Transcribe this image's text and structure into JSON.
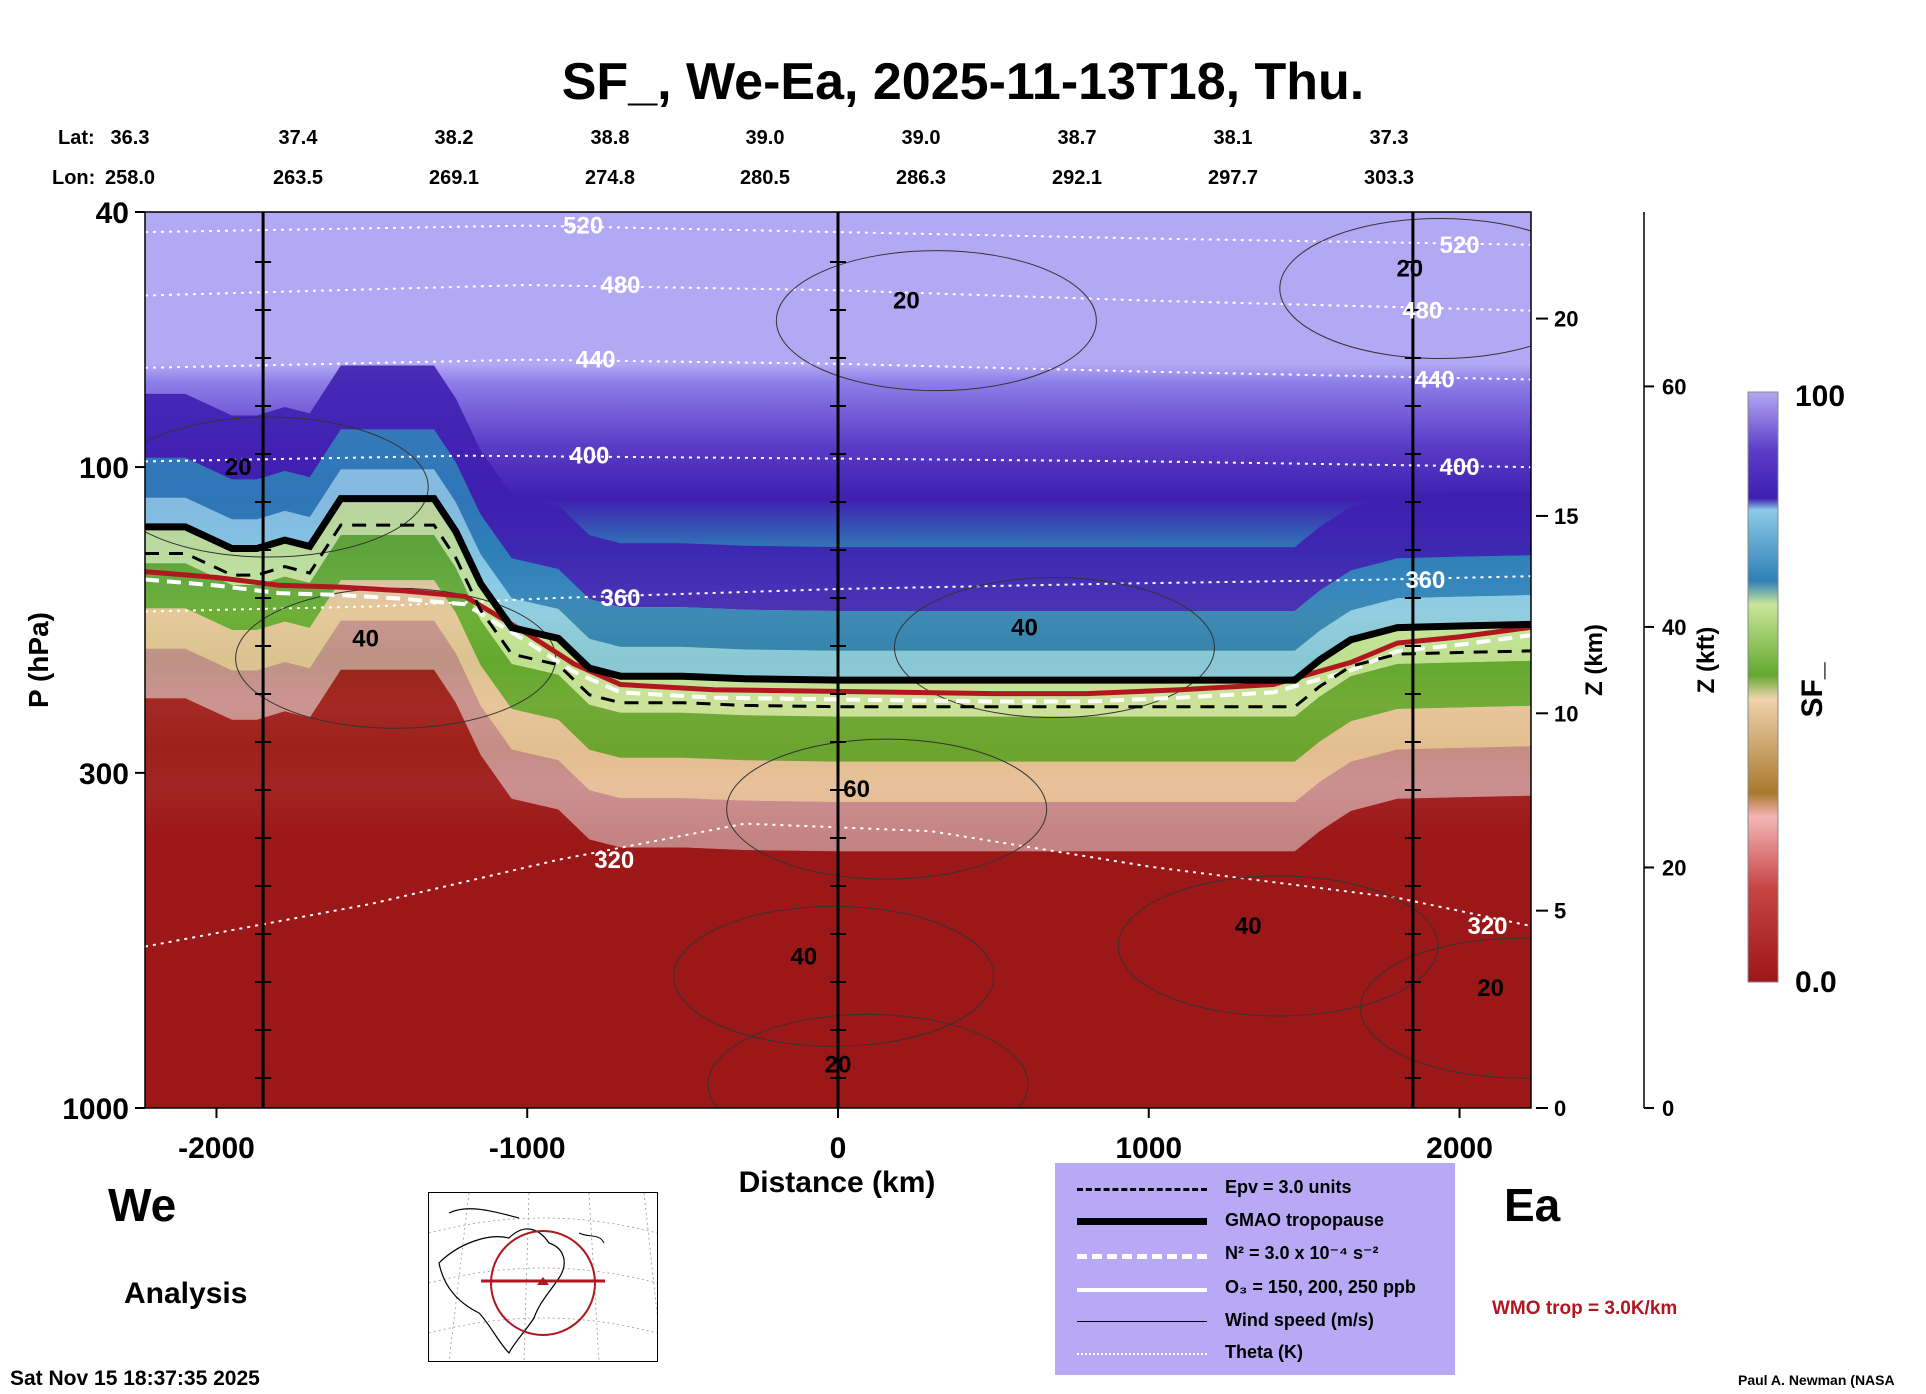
{
  "title": "SF_, We-Ea, 2025-11-13T18, Thu.",
  "header_rows": {
    "lat_label": "Lat:",
    "lon_label": "Lon:",
    "lat": [
      "36.3",
      "37.4",
      "38.2",
      "38.8",
      "39.0",
      "39.0",
      "38.7",
      "38.1",
      "37.3"
    ],
    "lon": [
      "258.0",
      "263.5",
      "269.1",
      "274.8",
      "280.5",
      "286.3",
      "292.1",
      "297.7",
      "303.3"
    ]
  },
  "direction": {
    "west": "We",
    "east": "Ea"
  },
  "mode_label": "Analysis",
  "timestamp": "Sat Nov 15 18:37:35 2025",
  "credit": "Paul A. Newman (NASA",
  "wmo_label": "WMO trop = 3.0K/km",
  "legend": {
    "epv": "Epv = 3.0 units",
    "tropopause": "GMAO tropopause",
    "n2": "N² = 3.0 x 10⁻⁴ s⁻²",
    "o3": "O₃ = 150, 200, 250 ppb",
    "wind": "Wind speed (m/s)",
    "theta": "Theta (K)"
  },
  "colors": {
    "stratosphere_top": "#b3a8f3",
    "purple_dark": "#3f1fb0",
    "blue_mid": "#2f7fb8",
    "blue_light": "#8ccbe6",
    "green_light": "#c9e69a",
    "green_dark": "#64a82e",
    "tan": "#e8c59a",
    "brown": "#a8792d",
    "pink": "#e49a9a",
    "red_dark": "#9c1717",
    "legend_bg": "#b7a9f6",
    "wmo": "#b0171f"
  },
  "chart_data": {
    "type": "heatmap",
    "title": "SF_, We-Ea, 2025-11-13T18, Thu.",
    "xlabel": "Distance (km)",
    "ylabel": "P (hPa)",
    "ylabel_right_km": "Z (km)",
    "ylabel_right_kft": "Z (kft)",
    "colorbar_label": "SF_",
    "xlim": [
      -2230,
      2230
    ],
    "ylim": [
      1000,
      40
    ],
    "y_scale": "log",
    "x_ticks": [
      -2000,
      -1000,
      0,
      1000,
      2000
    ],
    "x_tick_labels": [
      "-2000",
      "-1000",
      "0",
      "1000",
      "2000"
    ],
    "y_ticks": [
      40,
      100,
      300,
      1000
    ],
    "y_tick_labels": [
      "40",
      "100",
      "300",
      "1000"
    ],
    "z_km_ticks": [
      0,
      5,
      10,
      15,
      20
    ],
    "z_km_labels": [
      "0",
      "5",
      "10",
      "15",
      "20"
    ],
    "z_km_max": 22.7,
    "z_kft_ticks": [
      0,
      20,
      40,
      60
    ],
    "z_kft_labels": [
      "0",
      "20",
      "40",
      "60"
    ],
    "z_kft_max": 74.5,
    "colorbar_range": [
      0.0,
      100
    ],
    "colorbar_labels": [
      "100",
      "0.0"
    ],
    "vertical_markers_km": [
      -1850,
      0,
      1850
    ],
    "tropopause_km": [
      [
        -2230,
        124
      ],
      [
        -2100,
        124
      ],
      [
        -1950,
        134
      ],
      [
        -1870,
        134
      ],
      [
        -1780,
        130
      ],
      [
        -1700,
        133
      ],
      [
        -1600,
        112
      ],
      [
        -1450,
        112
      ],
      [
        -1300,
        112
      ],
      [
        -1230,
        126
      ],
      [
        -1150,
        152
      ],
      [
        -1050,
        178
      ],
      [
        -900,
        185
      ],
      [
        -800,
        206
      ],
      [
        -700,
        212
      ],
      [
        -500,
        212
      ],
      [
        -300,
        214
      ],
      [
        0,
        215
      ],
      [
        300,
        215
      ],
      [
        600,
        215
      ],
      [
        900,
        215
      ],
      [
        1200,
        215
      ],
      [
        1470,
        215
      ],
      [
        1550,
        200
      ],
      [
        1650,
        186
      ],
      [
        1800,
        178
      ],
      [
        2000,
        177
      ],
      [
        2230,
        176
      ]
    ],
    "wmo_tropopause_km": [
      [
        -2230,
        140
      ],
      [
        -2000,
        143
      ],
      [
        -1800,
        147
      ],
      [
        -1600,
        148
      ],
      [
        -1400,
        150
      ],
      [
        -1200,
        153
      ],
      [
        -1000,
        175
      ],
      [
        -850,
        195
      ],
      [
        -700,
        210
      ],
      [
        -400,
        214
      ],
      [
        -100,
        215
      ],
      [
        200,
        216
      ],
      [
        500,
        217
      ],
      [
        800,
        217
      ],
      [
        1100,
        214
      ],
      [
        1400,
        210
      ],
      [
        1650,
        194
      ],
      [
        1800,
        181
      ],
      [
        2000,
        177
      ],
      [
        2230,
        171
      ]
    ],
    "theta_contours": [
      {
        "label": "520",
        "label_x_km": [
          -820,
          2000
        ],
        "points": [
          [
            -2230,
            43
          ],
          [
            -1000,
            42
          ],
          [
            0,
            43
          ],
          [
            1000,
            44
          ],
          [
            2230,
            45
          ]
        ]
      },
      {
        "label": "480",
        "label_x_km": [
          -700,
          1880
        ],
        "points": [
          [
            -2230,
            54
          ],
          [
            -1000,
            52
          ],
          [
            0,
            53
          ],
          [
            1000,
            55
          ],
          [
            2230,
            57
          ]
        ]
      },
      {
        "label": "440",
        "label_x_km": [
          -780,
          1920
        ],
        "points": [
          [
            -2230,
            70
          ],
          [
            -1000,
            68
          ],
          [
            0,
            69
          ],
          [
            1000,
            71
          ],
          [
            2230,
            73
          ]
        ]
      },
      {
        "label": "400",
        "label_x_km": [
          -800,
          2000
        ],
        "points": [
          [
            -2230,
            98
          ],
          [
            -1200,
            96
          ],
          [
            0,
            97
          ],
          [
            1000,
            98
          ],
          [
            2230,
            100
          ]
        ]
      },
      {
        "label": "360",
        "label_x_km": [
          -700,
          1890
        ],
        "points": [
          [
            -2230,
            168
          ],
          [
            -1500,
            165
          ],
          [
            -900,
            160
          ],
          [
            0,
            155
          ],
          [
            900,
            152
          ],
          [
            1700,
            150
          ],
          [
            2230,
            148
          ]
        ]
      },
      {
        "label": "320",
        "label_x_km": [
          -720,
          2090
        ],
        "points": [
          [
            -2230,
            560
          ],
          [
            -1500,
            480
          ],
          [
            -900,
            410
          ],
          [
            -300,
            360
          ],
          [
            300,
            370
          ],
          [
            1000,
            420
          ],
          [
            1800,
            470
          ],
          [
            2230,
            520
          ]
        ]
      }
    ],
    "wind_contour_labels": [
      {
        "label": "20",
        "x_km": 220,
        "p_hpa": 55
      },
      {
        "label": "20",
        "x_km": -1930,
        "p_hpa": 100
      },
      {
        "label": "40",
        "x_km": -1520,
        "p_hpa": 185
      },
      {
        "label": "40",
        "x_km": 600,
        "p_hpa": 178
      },
      {
        "label": "60",
        "x_km": 60,
        "p_hpa": 318
      },
      {
        "label": "40",
        "x_km": -110,
        "p_hpa": 580
      },
      {
        "label": "40",
        "x_km": 1320,
        "p_hpa": 520
      },
      {
        "label": "20",
        "x_km": 2100,
        "p_hpa": 650
      },
      {
        "label": "20",
        "x_km": 0,
        "p_hpa": 855
      },
      {
        "label": "20",
        "x_km": 1840,
        "p_hpa": 49
      }
    ]
  }
}
